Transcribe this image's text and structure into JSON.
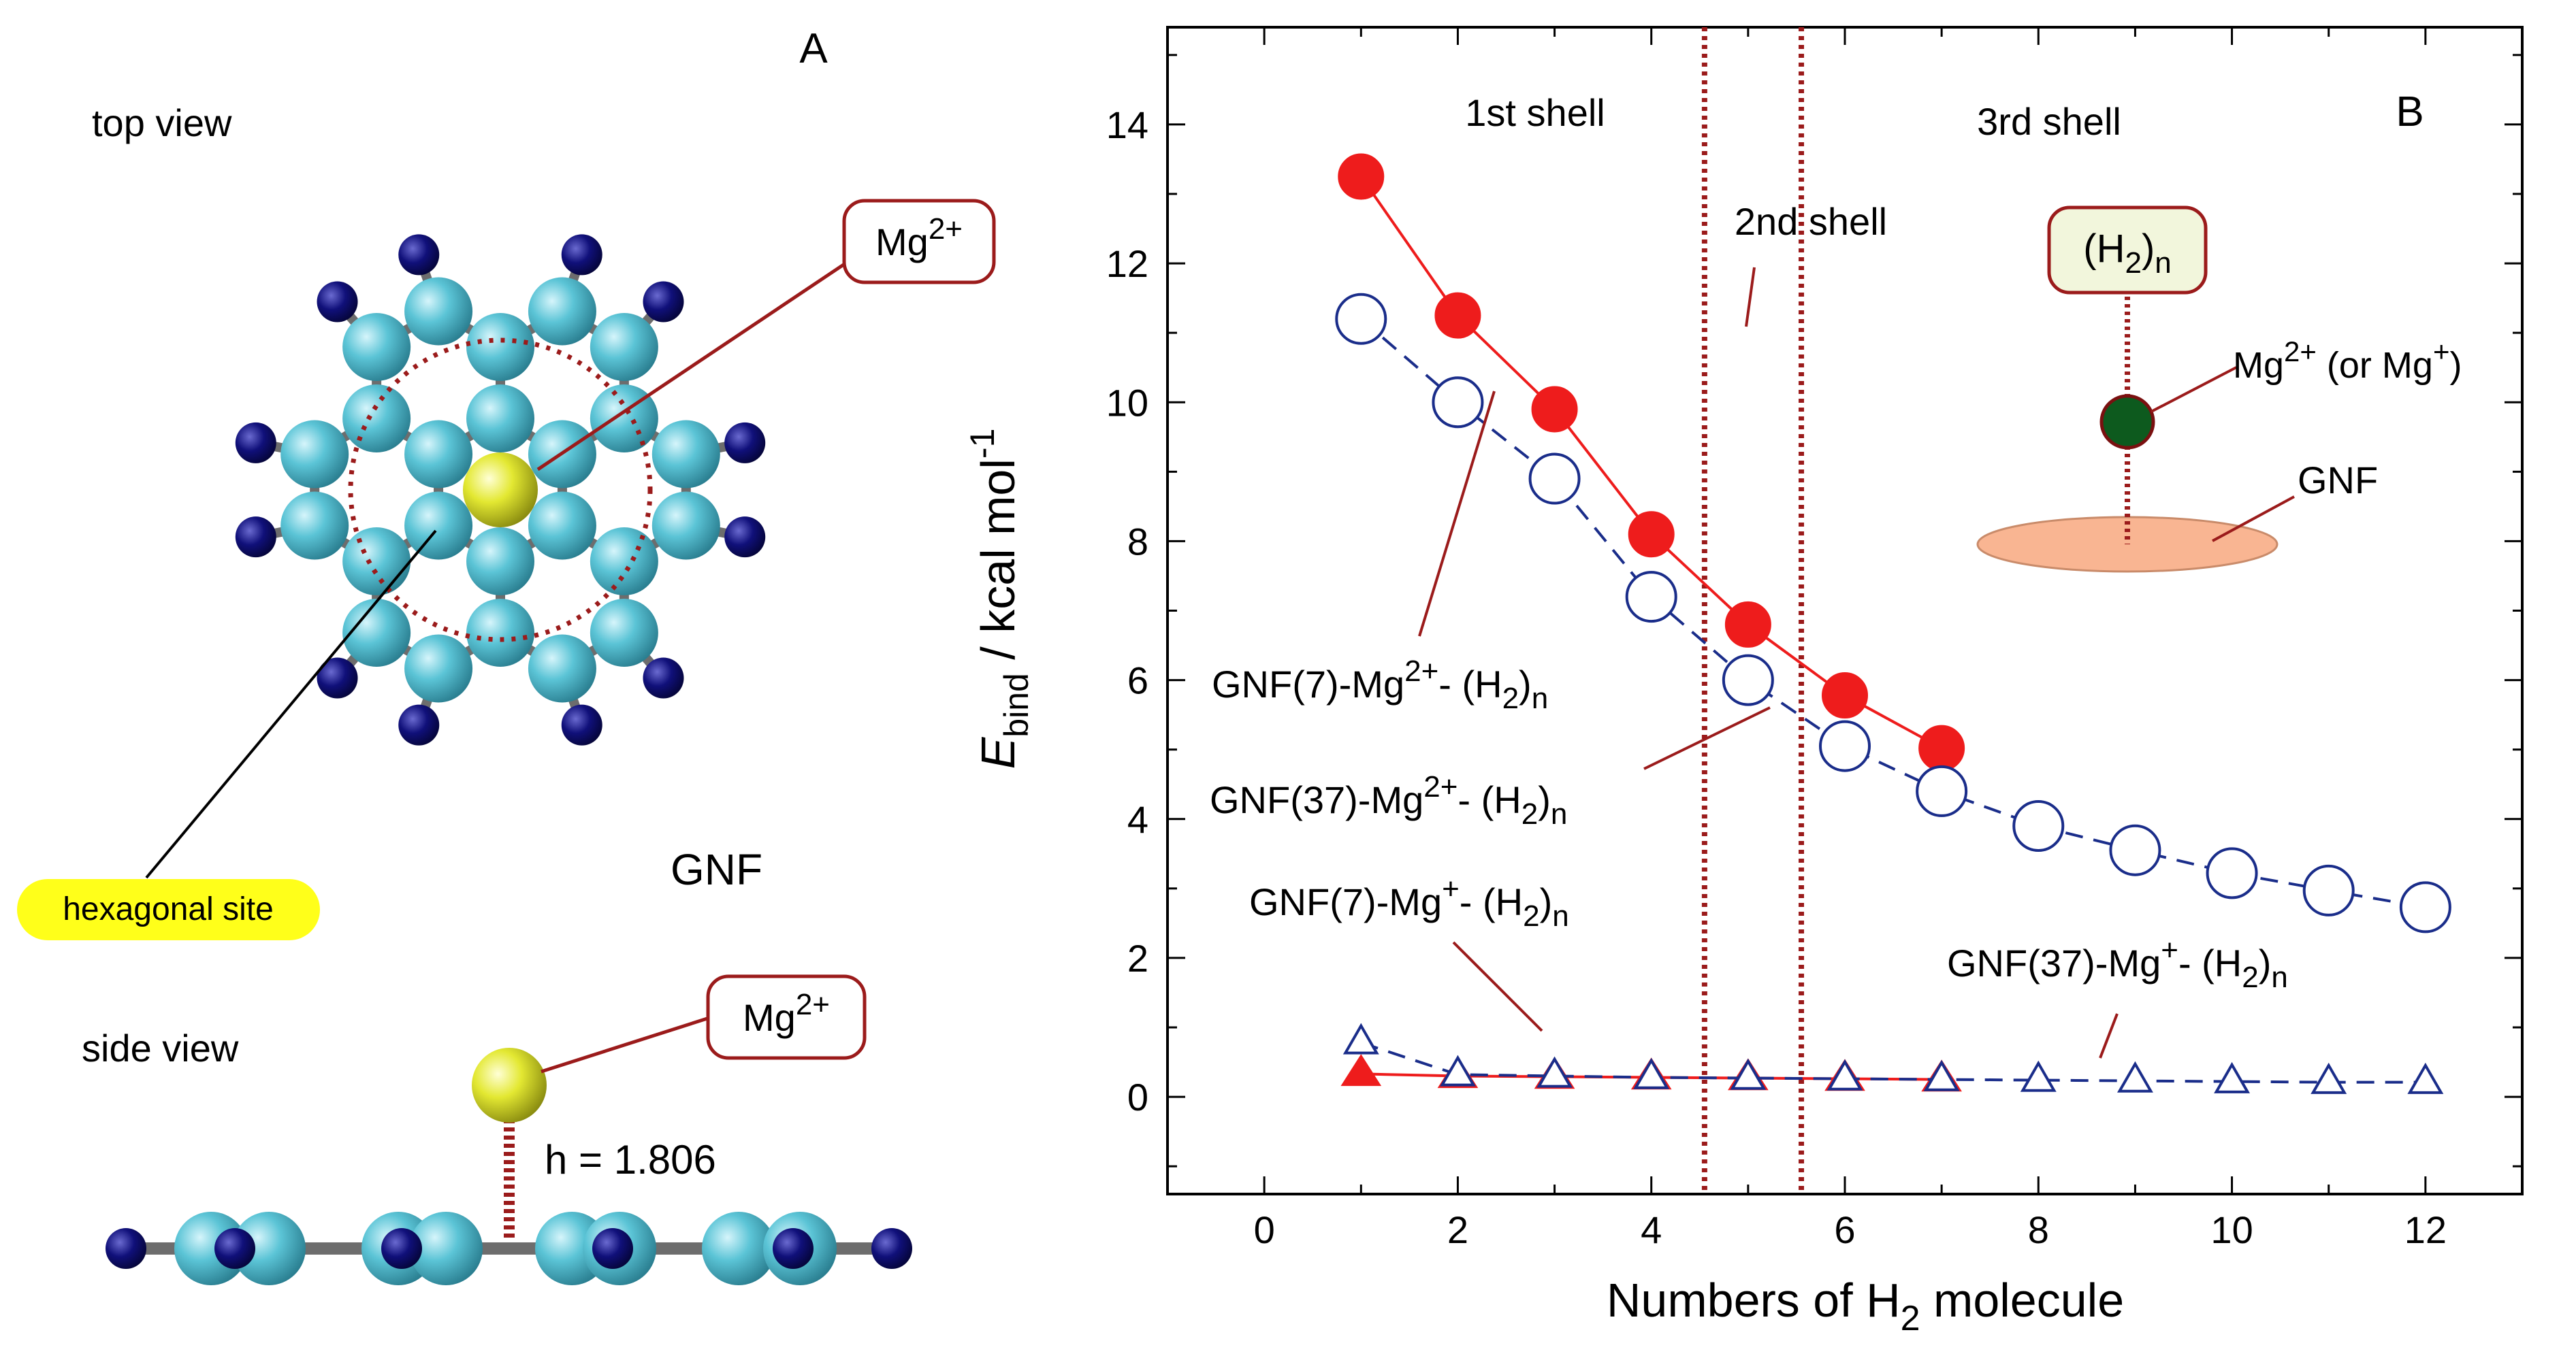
{
  "panel_a": {
    "label": "A",
    "top_view_label": "top view",
    "side_view_label": "side view",
    "gnf_label": "GNF",
    "site_label": "hexagonal site",
    "ion_base": "Mg",
    "ion_charge": "2+",
    "height_label": "h = 1.806",
    "colors": {
      "carbon": "#5bc4d6",
      "hydrogen": "#10107a",
      "magnesium": "#e3e832",
      "bond": "#6d6d6d",
      "ring": "#9b1b1b",
      "site_badge": "#ffff1a"
    }
  },
  "chart_data": {
    "type": "scatter",
    "panel_label": "B",
    "xlabel_text": "Numbers of H",
    "xlabel_sub": "2",
    "xlabel_tail": " molecule",
    "ylabel_main": "E",
    "ylabel_sub": "bind",
    "ylabel_tail": " / kcal mol",
    "ylabel_sup": "-1",
    "xlim": [
      -1,
      13
    ],
    "ylim": [
      -1.4,
      15.4
    ],
    "xticks": [
      0,
      2,
      4,
      6,
      8,
      10,
      12
    ],
    "yticks": [
      0,
      2,
      4,
      6,
      8,
      10,
      12,
      14
    ],
    "shell_boundaries": [
      4.55,
      5.55
    ],
    "shell_labels": [
      "1st shell",
      "2nd shell",
      "3rd shell"
    ],
    "series": [
      {
        "id": "s1",
        "prefix": "GNF(7)-Mg",
        "charge": "2+",
        "marker": "circle",
        "filled": true,
        "color": "#ee1c1c",
        "x": [
          1,
          2,
          3,
          4,
          5,
          6,
          7
        ],
        "y": [
          13.25,
          11.25,
          9.9,
          8.1,
          6.8,
          5.78,
          5.02
        ]
      },
      {
        "id": "s2",
        "prefix": "GNF(37)-Mg",
        "charge": "2+",
        "marker": "circle",
        "filled": false,
        "color": "#1a2d8a",
        "x": [
          1,
          2,
          3,
          4,
          5,
          6,
          7,
          8,
          9,
          10,
          11,
          12
        ],
        "y": [
          11.2,
          10.0,
          8.9,
          7.2,
          6.0,
          5.05,
          4.4,
          3.9,
          3.55,
          3.22,
          2.97,
          2.73
        ]
      },
      {
        "id": "s3",
        "prefix": "GNF(7)-Mg",
        "charge": "+",
        "marker": "triangle",
        "filled": true,
        "color": "#ee1c1c",
        "x": [
          1,
          2,
          3,
          4,
          5,
          6,
          7
        ],
        "y": [
          0.33,
          0.3,
          0.29,
          0.28,
          0.27,
          0.26,
          0.25
        ]
      },
      {
        "id": "s4",
        "prefix": "GNF(37)-Mg",
        "charge": "+",
        "marker": "triangle",
        "filled": false,
        "color": "#1a2d8a",
        "x": [
          1,
          2,
          3,
          4,
          5,
          6,
          7,
          8,
          9,
          10,
          11,
          12
        ],
        "y": [
          0.78,
          0.32,
          0.3,
          0.28,
          0.27,
          0.26,
          0.25,
          0.24,
          0.23,
          0.22,
          0.21,
          0.21
        ]
      }
    ],
    "series_label_tail": "- (H",
    "series_label_sub_a": "2",
    "series_label_close": ")",
    "series_label_sub_b": "n",
    "inset": {
      "box_open": "(H",
      "box_sub": "2",
      "box_close": ")",
      "box_sub_n": "n",
      "ion_label_base": "Mg",
      "ion_label_charge": "2+",
      "ion_label_mid": " (or Mg",
      "ion_label_charge2": "+",
      "ion_label_end": ")",
      "surface_label": "GNF",
      "colors": {
        "box": "#f2f6dc",
        "ion": "#0d5a1e",
        "surface": "#f9b592",
        "line": "#9b1b1b"
      }
    }
  }
}
